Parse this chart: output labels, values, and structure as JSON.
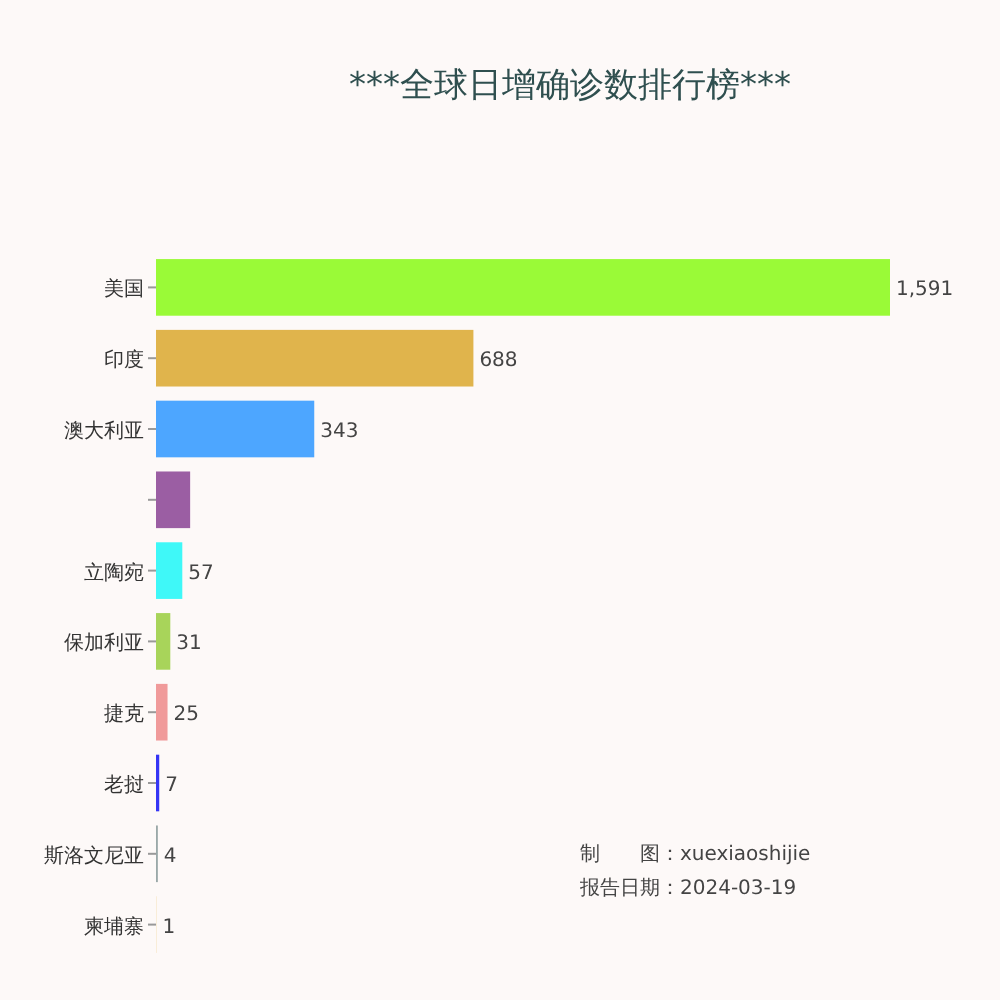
{
  "chart_data": {
    "type": "bar",
    "orientation": "horizontal",
    "title": "***全球日增确诊数排行榜***",
    "categories": [
      "美国",
      "印度",
      "澳大利亚",
      null,
      "立陶宛",
      "保加利亚",
      "捷克",
      "老挝",
      "斯洛文尼亚",
      "柬埔寨"
    ],
    "values": [
      1591,
      688,
      343,
      74,
      57,
      31,
      25,
      7,
      4,
      1
    ],
    "value_labels": [
      "1,591",
      "688",
      "343",
      null,
      "57",
      "31",
      "25",
      "7",
      "4",
      "1"
    ],
    "colors": [
      "#9afa37",
      "#e0b44c",
      "#4da6ff",
      "#9b5ea3",
      "#3ff8f8",
      "#a8d45a",
      "#f09a9a",
      "#3535f5",
      "#9aa8a8",
      "#f5deb3"
    ],
    "annotations": [
      "制　　图：xuexiaoshijie",
      "报告日期：2024-03-19"
    ]
  }
}
